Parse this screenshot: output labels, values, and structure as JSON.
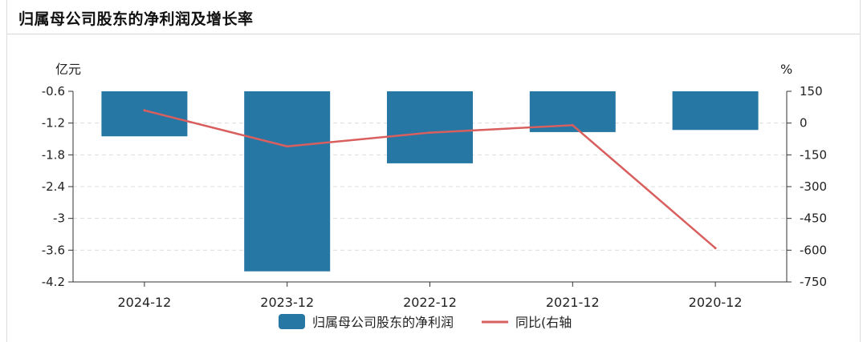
{
  "panel_title": "归属母公司股东的净利润及增长率",
  "chart_data": {
    "type": "bar",
    "categories": [
      "2024-12",
      "2023-12",
      "2022-12",
      "2021-12",
      "2020-12"
    ],
    "series": [
      {
        "name": "归属母公司股东的净利润",
        "chart": "bar",
        "axis": "left",
        "values": [
          -1.45,
          -4.0,
          -1.96,
          -1.37,
          -1.33
        ],
        "color": "#2777a4"
      },
      {
        "name": "同比(右轴",
        "chart": "line",
        "axis": "right",
        "values": [
          60,
          -110,
          -45,
          -10,
          -590
        ],
        "color": "#d95f5f"
      }
    ],
    "y_left": {
      "unit_label": "亿元",
      "range": [
        -4.2,
        -0.6
      ],
      "ticks": [
        -0.6,
        -1.2,
        -1.8,
        -2.4,
        -3,
        -3.6,
        -4.2
      ],
      "tick_labels": [
        "-0.6",
        "-1.2",
        "-1.8",
        "-2.4",
        "-3",
        "-3.6",
        "-4.2"
      ]
    },
    "y_right": {
      "unit_label": "%",
      "range": [
        -750,
        150
      ],
      "ticks": [
        150,
        0,
        -150,
        -300,
        -450,
        -600,
        -750
      ],
      "tick_labels": [
        "150",
        "0",
        "-150",
        "-300",
        "-450",
        "-600",
        "-750"
      ]
    },
    "grid": true,
    "legend_position": "bottom-center"
  }
}
